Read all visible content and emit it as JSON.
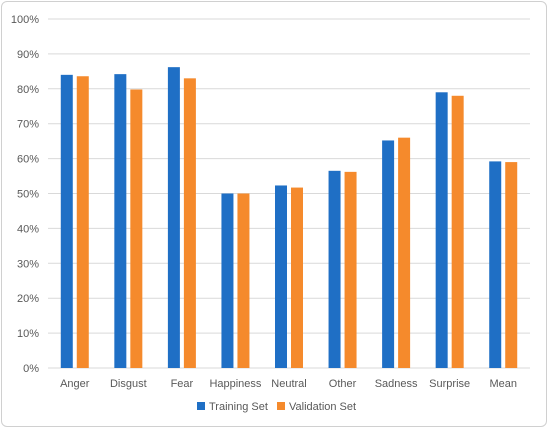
{
  "chart_data": {
    "type": "bar",
    "categories": [
      "Anger",
      "Disgust",
      "Fear",
      "Happiness",
      "Neutral",
      "Other",
      "Sadness",
      "Surprise",
      "Mean"
    ],
    "series": [
      {
        "name": "Training Set",
        "values": [
          84.0,
          84.2,
          86.2,
          50.0,
          52.3,
          56.5,
          65.2,
          79.0,
          59.2
        ],
        "color": "#1f6fc5"
      },
      {
        "name": "Validation Set",
        "values": [
          83.6,
          79.8,
          83.0,
          50.0,
          51.7,
          56.2,
          66.0,
          78.0,
          59.0
        ],
        "color": "#f58a2c"
      }
    ],
    "yticks": [
      "0%",
      "10%",
      "20%",
      "30%",
      "40%",
      "50%",
      "60%",
      "70%",
      "80%",
      "90%",
      "100%"
    ],
    "ylim": [
      0,
      100
    ],
    "grid": true,
    "legend": "bottom"
  }
}
